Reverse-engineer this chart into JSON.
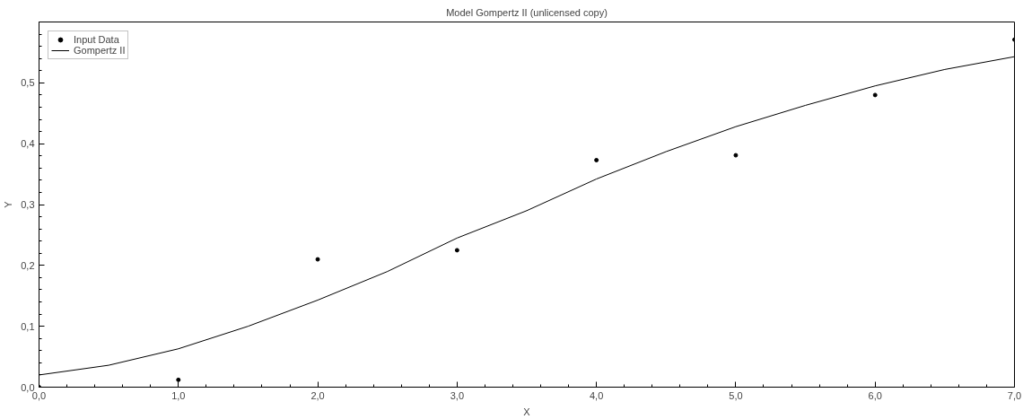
{
  "chart_data": {
    "type": "scatter",
    "title": "Model Gompertz II (unlicensed copy)",
    "xlabel": "X",
    "ylabel": "Y",
    "xlim": [
      0,
      7
    ],
    "ylim": [
      0,
      0.6
    ],
    "xticks": [
      {
        "value": 0,
        "label": "0,0"
      },
      {
        "value": 1,
        "label": "1,0"
      },
      {
        "value": 2,
        "label": "2,0"
      },
      {
        "value": 3,
        "label": "3,0"
      },
      {
        "value": 4,
        "label": "4,0"
      },
      {
        "value": 5,
        "label": "5,0"
      },
      {
        "value": 6,
        "label": "6,0"
      },
      {
        "value": 7,
        "label": "7,0"
      }
    ],
    "yticks": [
      {
        "value": 0,
        "label": "0,0"
      },
      {
        "value": 0.1,
        "label": "0,1"
      },
      {
        "value": 0.2,
        "label": "0,2"
      },
      {
        "value": 0.3,
        "label": "0,3"
      },
      {
        "value": 0.4,
        "label": "0,4"
      },
      {
        "value": 0.5,
        "label": "0,5"
      },
      {
        "value": 0.6,
        "label": null
      }
    ],
    "grid": false,
    "legend": "top left",
    "series": [
      {
        "name": "Input Data",
        "marker": "circle",
        "color": "#000000",
        "x": [
          0,
          1,
          2,
          3,
          4,
          5,
          6,
          7
        ],
        "values": [
          0,
          0.012,
          0.21,
          0.225,
          0.373,
          0.381,
          0.48,
          0.571
        ]
      },
      {
        "name": "Gompertz II",
        "type": "line",
        "marker": "none",
        "line_style": "solid",
        "color": "#000000",
        "x": [
          0,
          0.5,
          1,
          1.5,
          2,
          2.5,
          3,
          3.5,
          4,
          4.5,
          5,
          5.5,
          6,
          6.5,
          7
        ],
        "values": [
          0.02,
          0.036,
          0.063,
          0.1,
          0.143,
          0.19,
          0.245,
          0.29,
          0.342,
          0.387,
          0.428,
          0.463,
          0.495,
          0.522,
          0.543
        ]
      }
    ]
  }
}
